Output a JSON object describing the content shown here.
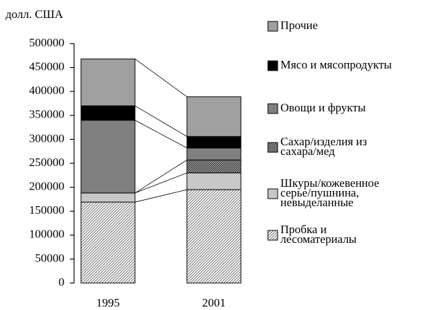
{
  "chart_data": {
    "type": "stacked_bar",
    "y_label": "долл. США",
    "categories": [
      "1995",
      "2001"
    ],
    "series": [
      {
        "name": "Пробка и\nлесоматериалы",
        "color": "#ffffff",
        "pattern": "diagonal",
        "values": [
          169000,
          195000
        ]
      },
      {
        "name": "Шкуры/кожевенное\nсерье/пушнина,\nневыделанные",
        "color": "#c8c8c8",
        "values": [
          19000,
          35000
        ]
      },
      {
        "name": "Сахар/изделия из\nсахара/мед",
        "color": "#404040",
        "pattern": "check",
        "values": [
          0,
          27000
        ]
      },
      {
        "name": "Овощи и фрукты",
        "color": "#808080",
        "values": [
          152000,
          25000
        ]
      },
      {
        "name": "Мясо и мясопродукты",
        "color": "#000000",
        "values": [
          30000,
          24000
        ]
      },
      {
        "name": "Прочие",
        "color": "#a0a0a0",
        "values": [
          98000,
          83000
        ]
      }
    ],
    "ylim": [
      0,
      500000
    ],
    "yticks": [
      0,
      50000,
      100000,
      150000,
      200000,
      250000,
      300000,
      350000,
      400000,
      450000,
      500000
    ],
    "connectors": true
  }
}
